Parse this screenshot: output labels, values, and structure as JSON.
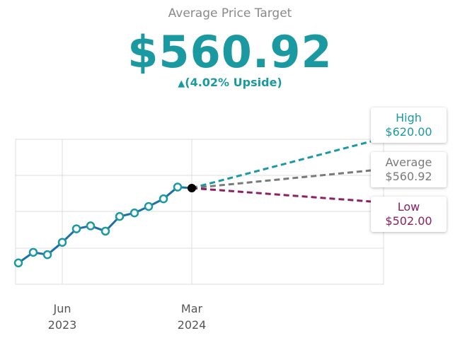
{
  "header": {
    "title": "Average Price Target",
    "price": "$560.92",
    "upside_arrow": "▲",
    "upside_text": "(4.02% Upside)"
  },
  "colors": {
    "accent": "#1a9aa0",
    "history_line": "#1f6fa8",
    "average": "#7a7a7a",
    "low": "#8a2163"
  },
  "chart_data": {
    "type": "line",
    "x_ticks": [
      {
        "month": "Jun",
        "year": "2023"
      },
      {
        "month": "Mar",
        "year": "2024"
      }
    ],
    "history": [
      {
        "x": "2023-05",
        "y": 412
      },
      {
        "x": "2023-05",
        "y": 430
      },
      {
        "x": "2023-05",
        "y": 426
      },
      {
        "x": "2023-06",
        "y": 447
      },
      {
        "x": "2023-07",
        "y": 470
      },
      {
        "x": "2023-08",
        "y": 475
      },
      {
        "x": "2023-08",
        "y": 466
      },
      {
        "x": "2023-09",
        "y": 491
      },
      {
        "x": "2023-10",
        "y": 497
      },
      {
        "x": "2023-11",
        "y": 508
      },
      {
        "x": "2023-12",
        "y": 521
      },
      {
        "x": "2024-01",
        "y": 541
      },
      {
        "x": "2024-02",
        "y": 539
      }
    ],
    "current": {
      "x": "2024-03",
      "y": 539.25
    },
    "forecast": [
      {
        "name": "High",
        "value": 620.0,
        "label": "$620.00"
      },
      {
        "name": "Average",
        "value": 560.92,
        "label": "$560.92"
      },
      {
        "name": "Low",
        "value": 502.0,
        "label": "$502.00"
      }
    ],
    "grid": true
  }
}
